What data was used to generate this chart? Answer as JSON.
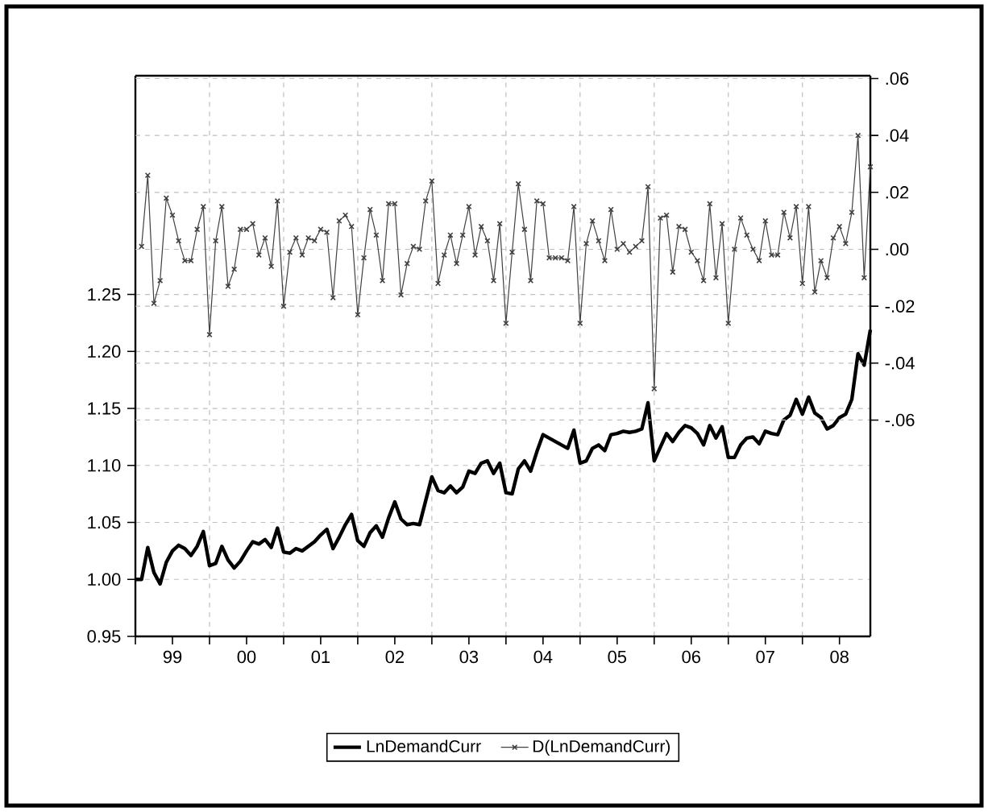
{
  "chart_data": {
    "type": "line",
    "legend": "bottom",
    "grid": true,
    "line_style": "solid",
    "x": [
      "1999-01",
      "1999-02",
      "1999-03",
      "1999-04",
      "1999-05",
      "1999-06",
      "1999-07",
      "1999-08",
      "1999-09",
      "1999-10",
      "1999-11",
      "1999-12",
      "2000-01",
      "2000-02",
      "2000-03",
      "2000-04",
      "2000-05",
      "2000-06",
      "2000-07",
      "2000-08",
      "2000-09",
      "2000-10",
      "2000-11",
      "2000-12",
      "2001-01",
      "2001-02",
      "2001-03",
      "2001-04",
      "2001-05",
      "2001-06",
      "2001-07",
      "2001-08",
      "2001-09",
      "2001-10",
      "2001-11",
      "2001-12",
      "2002-01",
      "2002-02",
      "2002-03",
      "2002-04",
      "2002-05",
      "2002-06",
      "2002-07",
      "2002-08",
      "2002-09",
      "2002-10",
      "2002-11",
      "2002-12",
      "2003-01",
      "2003-02",
      "2003-03",
      "2003-04",
      "2003-05",
      "2003-06",
      "2003-07",
      "2003-08",
      "2003-09",
      "2003-10",
      "2003-11",
      "2003-12",
      "2004-01",
      "2004-02",
      "2004-03",
      "2004-04",
      "2004-05",
      "2004-06",
      "2004-07",
      "2004-08",
      "2004-09",
      "2004-10",
      "2004-11",
      "2004-12",
      "2005-01",
      "2005-02",
      "2005-03",
      "2005-04",
      "2005-05",
      "2005-06",
      "2005-07",
      "2005-08",
      "2005-09",
      "2005-10",
      "2005-11",
      "2005-12",
      "2006-01",
      "2006-02",
      "2006-03",
      "2006-04",
      "2006-05",
      "2006-06",
      "2006-07",
      "2006-08",
      "2006-09",
      "2006-10",
      "2006-11",
      "2006-12",
      "2007-01",
      "2007-02",
      "2007-03",
      "2007-04",
      "2007-05",
      "2007-06",
      "2007-07",
      "2007-08",
      "2007-09",
      "2007-10",
      "2007-11",
      "2007-12",
      "2008-01",
      "2008-02",
      "2008-03",
      "2008-04",
      "2008-05",
      "2008-06",
      "2008-07",
      "2008-08",
      "2008-09",
      "2008-10",
      "2008-11",
      "2008-12"
    ],
    "xlim": [
      "1999-01",
      "2008-12"
    ],
    "xticks": [
      {
        "value": "1999-01",
        "label": null
      },
      {
        "value": "1999-07",
        "label": "99"
      },
      {
        "value": "2000-01",
        "label": null
      },
      {
        "value": "2000-07",
        "label": "00"
      },
      {
        "value": "2001-01",
        "label": null
      },
      {
        "value": "2001-07",
        "label": "01"
      },
      {
        "value": "2002-01",
        "label": null
      },
      {
        "value": "2002-07",
        "label": "02"
      },
      {
        "value": "2003-01",
        "label": null
      },
      {
        "value": "2003-07",
        "label": "03"
      },
      {
        "value": "2004-01",
        "label": null
      },
      {
        "value": "2004-07",
        "label": "04"
      },
      {
        "value": "2005-01",
        "label": null
      },
      {
        "value": "2005-07",
        "label": "05"
      },
      {
        "value": "2006-01",
        "label": null
      },
      {
        "value": "2006-07",
        "label": "06"
      },
      {
        "value": "2007-01",
        "label": null
      },
      {
        "value": "2007-07",
        "label": "07"
      },
      {
        "value": "2008-01",
        "label": null
      },
      {
        "value": "2008-07",
        "label": "08"
      }
    ],
    "ylim": [
      0.95,
      1.442
    ],
    "yticks": [
      {
        "value": 0.95,
        "label": "0.95"
      },
      {
        "value": 1.0,
        "label": "1.00"
      },
      {
        "value": 1.05,
        "label": "1.05"
      },
      {
        "value": 1.1,
        "label": "1.10"
      },
      {
        "value": 1.15,
        "label": "1.15"
      },
      {
        "value": 1.2,
        "label": "1.20"
      },
      {
        "value": 1.25,
        "label": "1.25"
      }
    ],
    "y2lim": [
      -0.136,
      0.061
    ],
    "y2ticks": [
      {
        "value": -0.06,
        "label": "-.06"
      },
      {
        "value": -0.04,
        "label": "-.04"
      },
      {
        "value": -0.02,
        "label": "-.02"
      },
      {
        "value": 0.0,
        "label": ".00"
      },
      {
        "value": 0.02,
        "label": ".02"
      },
      {
        "value": 0.04,
        "label": ".04"
      },
      {
        "value": 0.06,
        "label": ".06"
      }
    ],
    "series": [
      {
        "name": "LnDemandCurr",
        "color": "#000000",
        "marker": "none",
        "values": [
          1.0,
          1.0,
          1.028,
          1.006,
          0.996,
          1.015,
          1.025,
          1.03,
          1.027,
          1.021,
          1.029,
          1.042,
          1.012,
          1.014,
          1.029,
          1.017,
          1.01,
          1.016,
          1.025,
          1.033,
          1.031,
          1.035,
          1.028,
          1.045,
          1.024,
          1.023,
          1.027,
          1.025,
          1.029,
          1.033,
          1.039,
          1.044,
          1.027,
          1.037,
          1.048,
          1.057,
          1.034,
          1.029,
          1.041,
          1.047,
          1.037,
          1.054,
          1.068,
          1.053,
          1.048,
          1.049,
          1.048,
          1.069,
          1.09,
          1.078,
          1.076,
          1.082,
          1.076,
          1.081,
          1.095,
          1.093,
          1.102,
          1.104,
          1.093,
          1.102,
          1.076,
          1.075,
          1.097,
          1.104,
          1.095,
          1.112,
          1.127,
          1.124,
          1.121,
          1.118,
          1.115,
          1.131,
          1.102,
          1.104,
          1.115,
          1.118,
          1.113,
          1.127,
          1.128,
          1.13,
          1.129,
          1.13,
          1.132,
          1.155,
          1.104,
          1.116,
          1.128,
          1.121,
          1.129,
          1.135,
          1.133,
          1.128,
          1.118,
          1.135,
          1.124,
          1.134,
          1.107,
          1.107,
          1.118,
          1.124,
          1.125,
          1.119,
          1.13,
          1.128,
          1.127,
          1.14,
          1.144,
          1.158,
          1.145,
          1.16,
          1.146,
          1.142,
          1.132,
          1.135,
          1.142,
          1.145,
          1.158,
          1.198,
          1.188,
          1.219
        ]
      },
      {
        "name": "D(LnDemandCurr)",
        "color": "#404040",
        "marker": "cross",
        "axis": "y2",
        "values": [
          null,
          0.001,
          0.026,
          -0.019,
          -0.011,
          0.018,
          0.012,
          0.003,
          -0.004,
          -0.004,
          0.007,
          0.015,
          -0.03,
          0.003,
          0.015,
          -0.013,
          -0.007,
          0.007,
          0.007,
          0.009,
          -0.002,
          0.004,
          -0.006,
          0.017,
          -0.02,
          -0.001,
          0.004,
          -0.002,
          0.004,
          0.003,
          0.007,
          0.006,
          -0.017,
          0.01,
          0.012,
          0.008,
          -0.023,
          -0.003,
          0.014,
          0.005,
          -0.011,
          0.016,
          0.016,
          -0.016,
          -0.005,
          0.001,
          0.0,
          0.017,
          0.024,
          -0.012,
          -0.002,
          0.005,
          -0.005,
          0.005,
          0.015,
          -0.002,
          0.008,
          0.003,
          -0.011,
          0.009,
          -0.026,
          -0.001,
          0.023,
          0.007,
          -0.011,
          0.017,
          0.016,
          -0.003,
          -0.003,
          -0.003,
          -0.004,
          0.015,
          -0.026,
          0.002,
          0.01,
          0.003,
          -0.004,
          0.014,
          0.0,
          0.002,
          -0.001,
          0.001,
          0.003,
          0.022,
          -0.049,
          0.011,
          0.012,
          -0.008,
          0.008,
          0.007,
          -0.001,
          -0.004,
          -0.011,
          0.016,
          -0.01,
          0.009,
          -0.026,
          0.0,
          0.011,
          0.005,
          0.0,
          -0.004,
          0.01,
          -0.002,
          -0.002,
          0.013,
          0.004,
          0.015,
          -0.012,
          0.015,
          -0.015,
          -0.004,
          -0.01,
          0.004,
          0.008,
          0.002,
          0.013,
          0.04,
          -0.01,
          0.029
        ]
      }
    ]
  }
}
